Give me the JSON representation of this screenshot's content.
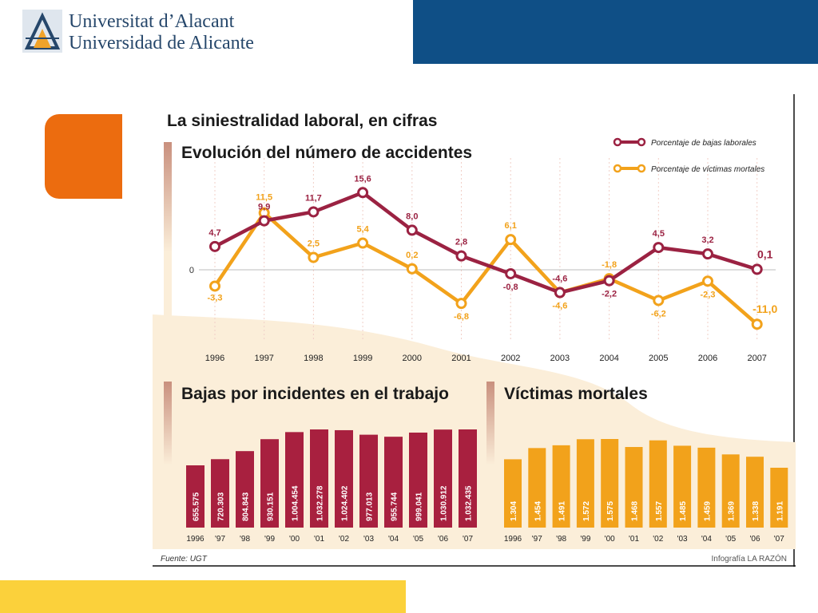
{
  "header": {
    "university_ca": "Universitat d’Alacant",
    "university_es": "Universidad de Alicante",
    "brand_color": "#0f4f86"
  },
  "decor": {
    "accent_orange": "#ec6c0f",
    "accent_yellow": "#fbd13b"
  },
  "infographic": {
    "title": "La siniestralidad laboral, en cifras",
    "source": "Fuente: UGT",
    "credit": "Infografía LA RAZÓN"
  },
  "chart_data": [
    {
      "type": "line",
      "title": "Evolución del número de accidentes",
      "x": [
        "1996",
        "1997",
        "1998",
        "1999",
        "2000",
        "2001",
        "2002",
        "2003",
        "2004",
        "2005",
        "2006",
        "2007"
      ],
      "zero_label": "0",
      "legend_position": "top-right",
      "series": [
        {
          "name": "Porcentaje de bajas laborales",
          "color": "#9b2242",
          "values": [
            4.7,
            9.9,
            11.7,
            15.6,
            8.0,
            2.8,
            -0.8,
            -4.6,
            -2.2,
            4.5,
            3.2,
            0.1
          ],
          "labels": [
            "4,7",
            "9,9",
            "11,7",
            "15,6",
            "8,0",
            "2,8",
            "-0,8",
            "-4,6",
            "-2,2",
            "4,5",
            "3,2",
            "0,1"
          ]
        },
        {
          "name": "Porcentaje de víctimas mortales",
          "color": "#f2a21b",
          "values": [
            -3.3,
            11.5,
            2.5,
            5.4,
            0.2,
            -6.8,
            6.1,
            -4.6,
            -1.8,
            -6.2,
            -2.3,
            -11.0
          ],
          "labels": [
            "-3,3",
            "11,5",
            "2,5",
            "5,4",
            "0,2",
            "-6,8",
            "6,1",
            "-4,6",
            "-1,8",
            "-6,2",
            "-2,3",
            "-11,0"
          ]
        }
      ]
    },
    {
      "type": "bar",
      "title": "Bajas por incidentes en el trabajo",
      "color": "#a8203f",
      "categories": [
        "1996",
        "'97",
        "'98",
        "'99",
        "'00",
        "'01",
        "'02",
        "'03",
        "'04",
        "'05",
        "'06",
        "'07"
      ],
      "values": [
        655575,
        720303,
        804843,
        930151,
        1004454,
        1032278,
        1024402,
        977013,
        955744,
        999041,
        1030912,
        1032435
      ],
      "labels": [
        "655.575",
        "720.303",
        "804.843",
        "930.151",
        "1.004.454",
        "1.032.278",
        "1.024.402",
        "977.013",
        "955.744",
        "999.041",
        "1.030.912",
        "1.032.435"
      ]
    },
    {
      "type": "bar",
      "title": "Víctimas mortales",
      "color": "#f2a21b",
      "categories": [
        "1996",
        "'97",
        "'98",
        "'99",
        "'00",
        "'01",
        "'02",
        "'03",
        "'04",
        "'05",
        "'06",
        "'07"
      ],
      "values": [
        1304,
        1454,
        1491,
        1572,
        1575,
        1468,
        1557,
        1485,
        1459,
        1369,
        1338,
        1191
      ],
      "labels": [
        "1.304",
        "1.454",
        "1.491",
        "1.572",
        "1.575",
        "1.468",
        "1.557",
        "1.485",
        "1.459",
        "1.369",
        "1.338",
        "1.191"
      ]
    }
  ]
}
